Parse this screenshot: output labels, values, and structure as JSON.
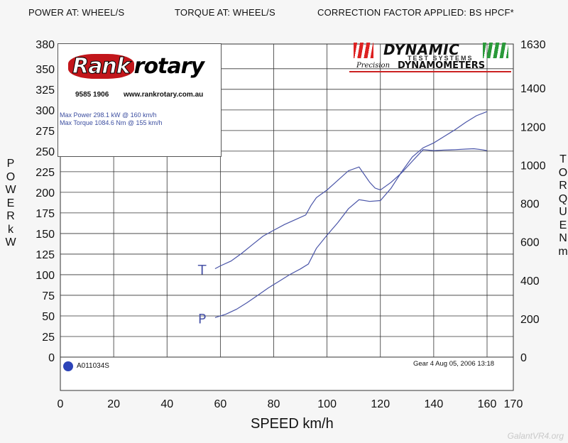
{
  "header": {
    "power": "POWER AT: WHEEL/S",
    "torque": "TORQUE AT: WHEEL/S",
    "correction": "CORRECTION FACTOR APPLIED: BS HPCF*"
  },
  "left_axis_label": [
    "P",
    "O",
    "W",
    "E",
    "R",
    "",
    "k",
    "W"
  ],
  "right_axis_label": [
    "T",
    "O",
    "R",
    "Q",
    "U",
    "E",
    "",
    "N",
    "m"
  ],
  "logos": {
    "rank_part1": "Rank",
    "rank_part2": "rotary",
    "rank_phone": "9585 1906",
    "rank_url": "www.rankrotary.com.au",
    "dynamic_name": "DYNAMIC",
    "dynamic_sub": "TEST SYSTEMS",
    "dynamic_precision": "Precision",
    "dynamic_dyno": "DYNAMOMETERS"
  },
  "info": {
    "max_power": "Max Power 298.1 kW @ 160 km/h",
    "max_torque": "Max Torque 1084.6 Nm @ 155 km/h",
    "run_id": "A011034S",
    "run_detail": "Gear 4  Aug 05, 2006 13:18"
  },
  "colors": {
    "curve": "#4a55a8",
    "grid": "#333333",
    "run_dot": "#2c43b8",
    "rank_red": "#c2161b"
  },
  "watermark": "GalantVR4.org",
  "chart_data": {
    "type": "line",
    "title": "",
    "xlabel": "SPEED km/h",
    "ylabel": "POWER kW",
    "y2label": "TORQUE Nm",
    "xlim": [
      0,
      170
    ],
    "ylim": [
      0,
      380
    ],
    "y2lim": [
      0,
      1630
    ],
    "x_ticks": [
      0,
      20,
      40,
      60,
      80,
      100,
      120,
      140,
      160,
      170
    ],
    "y_ticks": [
      0,
      25,
      50,
      75,
      100,
      125,
      150,
      175,
      200,
      225,
      250,
      275,
      300,
      325,
      350,
      380
    ],
    "y2_ticks": [
      0,
      200,
      400,
      600,
      800,
      1000,
      1200,
      1400,
      1630
    ],
    "grid": true,
    "series": [
      {
        "name": "P",
        "axis": "left",
        "x": [
          58,
          62,
          66,
          70,
          74,
          78,
          82,
          86,
          90,
          93,
          96,
          100,
          104,
          108,
          112,
          116,
          120,
          124,
          128,
          132,
          136,
          140,
          144,
          148,
          152,
          156,
          160
        ],
        "values": [
          48,
          52,
          58,
          66,
          75,
          84,
          92,
          100,
          107,
          113,
          132,
          148,
          163,
          180,
          191,
          189,
          190,
          205,
          225,
          243,
          254,
          260,
          268,
          276,
          285,
          293,
          298
        ]
      },
      {
        "name": "T",
        "axis": "right",
        "x": [
          58,
          60,
          64,
          68,
          72,
          76,
          80,
          84,
          88,
          92,
          94,
          96,
          100,
          104,
          108,
          112,
          114,
          116,
          118,
          120,
          124,
          128,
          132,
          136,
          140,
          144,
          148,
          152,
          155,
          158,
          160
        ],
        "values": [
          460,
          475,
          500,
          540,
          585,
          630,
          660,
          690,
          715,
          740,
          790,
          830,
          870,
          920,
          970,
          990,
          950,
          910,
          880,
          870,
          910,
          960,
          1020,
          1080,
          1075,
          1078,
          1080,
          1083,
          1085,
          1080,
          1075
        ]
      }
    ],
    "annotations": [
      "T",
      "P"
    ]
  }
}
